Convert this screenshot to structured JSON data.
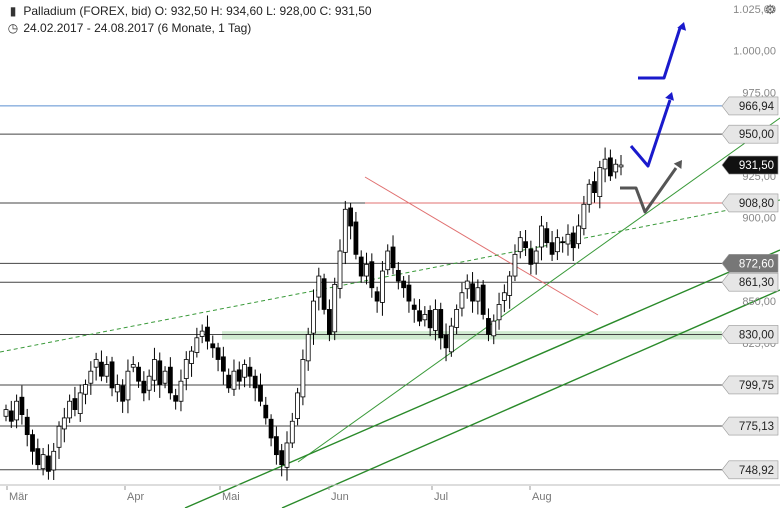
{
  "header": {
    "instrument_icon": "candlestick-icon",
    "line1": "Palladium (FOREX, bid)  O: 932,50  H: 934,60  L: 928,00  C: 931,50",
    "period_icon": "clock-icon",
    "line2": "24.02.2017 - 24.08.2017   (6 Monate, 1 Tag)",
    "settings_icon": "gear-icon"
  },
  "chart_data": {
    "type": "candlestick",
    "instrument": "Palladium (FOREX, bid)",
    "ohlc_last": {
      "open": 932.5,
      "high": 934.6,
      "low": 928.0,
      "close": 931.5
    },
    "period": "24.02.2017 - 24.08.2017",
    "ylim": [
      735,
      1030
    ],
    "x_ticks": [
      "Mär",
      "Apr",
      "Mai",
      "Jun",
      "Jul",
      "Aug"
    ],
    "y_ticks": [
      "1.025,00",
      "1.000,00",
      "975,00",
      "950,00",
      "925,00",
      "900,00",
      "875,00",
      "850,00",
      "825,00"
    ],
    "price_labels": [
      {
        "label": "966,94",
        "value": 966.94,
        "style": "gray"
      },
      {
        "label": "950,00",
        "value": 950.0,
        "style": "gray"
      },
      {
        "label": "931,50",
        "value": 931.5,
        "style": "dark"
      },
      {
        "label": "908,80",
        "value": 908.8,
        "style": "gray"
      },
      {
        "label": "872,60",
        "value": 872.6,
        "style": "darkgray"
      },
      {
        "label": "861,30",
        "value": 861.3,
        "style": "gray"
      },
      {
        "label": "830,00",
        "value": 830.0,
        "style": "gray"
      },
      {
        "label": "799,75",
        "value": 799.75,
        "style": "gray"
      },
      {
        "label": "775,13",
        "value": 775.13,
        "style": "gray"
      },
      {
        "label": "748,92",
        "value": 748.92,
        "style": "gray"
      }
    ],
    "support_zone": [
      827,
      832
    ],
    "closes": [
      785,
      778,
      790,
      782,
      770,
      760,
      752,
      758,
      748,
      760,
      775,
      780,
      790,
      785,
      795,
      800,
      808,
      815,
      805,
      812,
      798,
      800,
      790,
      808,
      812,
      802,
      795,
      805,
      815,
      800,
      808,
      795,
      790,
      802,
      815,
      820,
      828,
      832,
      826,
      822,
      815,
      808,
      798,
      808,
      802,
      812,
      805,
      798,
      790,
      780,
      768,
      758,
      752,
      765,
      778,
      795,
      815,
      830,
      850,
      865,
      845,
      830,
      860,
      880,
      905,
      895,
      878,
      865,
      872,
      858,
      850,
      868,
      880,
      870,
      862,
      858,
      850,
      845,
      838,
      842,
      834,
      845,
      828,
      822,
      835,
      845,
      855,
      862,
      850,
      858,
      842,
      830,
      838,
      848,
      855,
      865,
      878,
      888,
      882,
      872,
      880,
      895,
      885,
      878,
      888,
      885,
      890,
      882,
      895,
      908,
      920,
      915,
      930,
      935,
      925,
      932,
      931.5
    ],
    "colors": {
      "up": "#ffffff",
      "down": "#000000",
      "wick": "#000000",
      "support": "#c8e6c8",
      "resistance_line": "#e07070",
      "blue_arrow": "#1a1acc",
      "gray_arrow": "#555555",
      "trend_green": "#3a9a3a"
    }
  }
}
